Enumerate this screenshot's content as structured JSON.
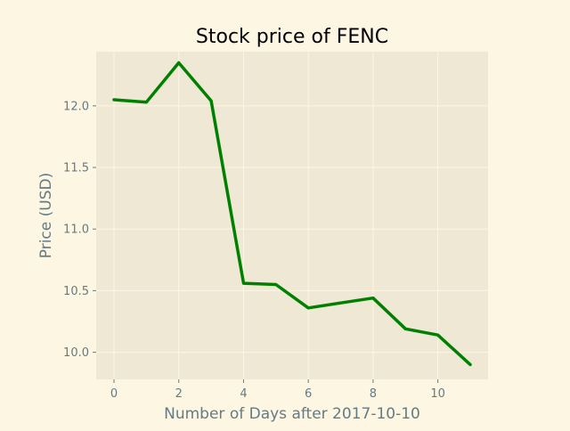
{
  "colors": {
    "figure_background": "#fdf6e3",
    "plot_background": "#eee8d5",
    "grid": "#fdf6e3",
    "series_line": "#008000",
    "text_dark": "#000000",
    "text_muted": "#657b83"
  },
  "chart_data": {
    "type": "line",
    "title": "Stock price of FENC",
    "xlabel": "Number of Days after 2017-10-10",
    "ylabel": "Price (USD)",
    "xlim": [
      -0.55,
      11.55
    ],
    "ylim": [
      9.78,
      12.44
    ],
    "xticks": [
      0,
      2,
      4,
      6,
      8,
      10
    ],
    "xtick_labels": [
      "0",
      "2",
      "4",
      "6",
      "8",
      "10"
    ],
    "yticks": [
      10.0,
      10.5,
      11.0,
      11.5,
      12.0
    ],
    "ytick_labels": [
      "10.0",
      "10.5",
      "11.0",
      "11.5",
      "12.0"
    ],
    "grid": true,
    "legend": "none",
    "series": [
      {
        "x": [
          0,
          1,
          2,
          3,
          4,
          5,
          6,
          7,
          8,
          9,
          10,
          11
        ],
        "y": [
          12.05,
          12.03,
          12.35,
          12.04,
          10.56,
          10.55,
          10.36,
          10.4,
          10.44,
          10.19,
          10.14,
          9.9
        ]
      }
    ]
  }
}
